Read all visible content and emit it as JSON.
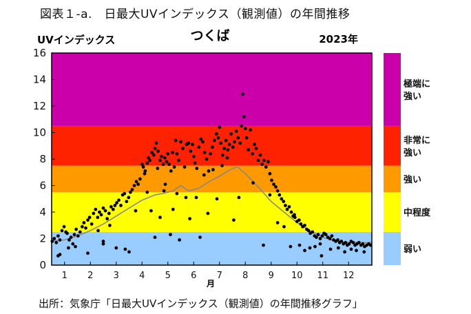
{
  "figure_title": "図表１-a.　日最大UVインデックス（観測値）の年間推移",
  "source": "出所：気象庁「日最大UVインデックス（観測値）の年間推移グラフ」",
  "chart_data": {
    "type": "scatter",
    "title": "つくば",
    "year_label": "2023年",
    "ylabel": "UVインデックス",
    "xlabel": "月",
    "xlim": [
      0.5,
      12.9
    ],
    "ylim": [
      0,
      16
    ],
    "yticks": [
      0,
      2,
      4,
      6,
      8,
      10,
      12,
      14,
      16
    ],
    "xticks": [
      1,
      2,
      3,
      4,
      5,
      6,
      7,
      8,
      9,
      10,
      11,
      12
    ],
    "grid": false,
    "bands": [
      {
        "from": 0,
        "to": 2.5,
        "label": "弱い",
        "color": "#99CCFF"
      },
      {
        "from": 2.5,
        "to": 5.5,
        "label": "中程度",
        "color": "#FFFF00"
      },
      {
        "from": 5.5,
        "to": 7.5,
        "label": "強い",
        "color": "#FF9900"
      },
      {
        "from": 7.5,
        "to": 10.5,
        "label": "非常に強い",
        "color": "#FF2200"
      },
      {
        "from": 10.5,
        "to": 16,
        "label": "極端に強い",
        "color": "#CC00AA"
      }
    ],
    "climatology_line": {
      "color": "#888888",
      "x": [
        0.5,
        1.0,
        1.5,
        2.0,
        2.5,
        3.0,
        3.5,
        4.0,
        4.5,
        4.8,
        5.2,
        5.5,
        5.8,
        6.2,
        6.6,
        7.0,
        7.4,
        7.7,
        8.0,
        8.5,
        9.0,
        9.5,
        10.0,
        10.5,
        11.0,
        11.5,
        12.0,
        12.5,
        12.9
      ],
      "y": [
        1.8,
        1.9,
        2.2,
        2.6,
        3.1,
        3.7,
        4.3,
        4.9,
        5.3,
        5.4,
        5.6,
        6.0,
        5.6,
        5.8,
        6.3,
        6.7,
        7.2,
        7.4,
        6.9,
        5.9,
        4.8,
        4.0,
        3.2,
        2.6,
        2.1,
        1.8,
        1.7,
        1.7,
        1.7
      ]
    },
    "series": [
      {
        "color": "#000000",
        "points": [
          [
            0.52,
            1.8
          ],
          [
            0.6,
            2.0
          ],
          [
            0.68,
            1.7
          ],
          [
            0.75,
            2.2
          ],
          [
            0.82,
            1.9
          ],
          [
            0.9,
            2.6
          ],
          [
            0.98,
            2.9
          ],
          [
            1.05,
            2.5
          ],
          [
            1.1,
            2.4
          ],
          [
            1.18,
            1.9
          ],
          [
            1.25,
            2.1
          ],
          [
            1.32,
            1.6
          ],
          [
            1.38,
            2.3
          ],
          [
            1.45,
            2.7
          ],
          [
            1.52,
            2.2
          ],
          [
            1.6,
            2.5
          ],
          [
            1.68,
            2.9
          ],
          [
            1.75,
            3.2
          ],
          [
            1.82,
            2.8
          ],
          [
            1.9,
            3.4
          ],
          [
            1.97,
            3.6
          ],
          [
            0.75,
            0.7
          ],
          [
            0.82,
            0.8
          ],
          [
            1.15,
            1.3
          ],
          [
            1.42,
            1.4
          ],
          [
            1.9,
            0.9
          ],
          [
            2.5,
            1.6
          ],
          [
            2.05,
            3.1
          ],
          [
            2.12,
            3.9
          ],
          [
            2.2,
            4.2
          ],
          [
            2.28,
            3.6
          ],
          [
            2.35,
            4.0
          ],
          [
            2.42,
            3.8
          ],
          [
            2.5,
            4.3
          ],
          [
            2.58,
            4.1
          ],
          [
            2.65,
            3.5
          ],
          [
            2.72,
            3.9
          ],
          [
            2.8,
            4.4
          ],
          [
            2.88,
            4.2
          ],
          [
            2.95,
            4.5
          ],
          [
            3.02,
            4.7
          ],
          [
            3.1,
            4.9
          ],
          [
            3.18,
            4.5
          ],
          [
            3.25,
            5.3
          ],
          [
            3.32,
            5.4
          ],
          [
            3.4,
            4.8
          ],
          [
            3.48,
            5.1
          ],
          [
            3.55,
            5.5
          ],
          [
            3.62,
            5.7
          ],
          [
            3.7,
            6.0
          ],
          [
            3.78,
            6.3
          ],
          [
            3.85,
            6.1
          ],
          [
            3.92,
            6.5
          ],
          [
            2.3,
            2.6
          ],
          [
            2.5,
            1.8
          ],
          [
            2.75,
            3.0
          ],
          [
            3.0,
            1.3
          ],
          [
            3.35,
            1.2
          ],
          [
            3.5,
            1.0
          ],
          [
            3.75,
            4.1
          ],
          [
            4.0,
            7.6
          ],
          [
            4.05,
            7.4
          ],
          [
            4.12,
            7.1
          ],
          [
            4.2,
            7.7
          ],
          [
            4.25,
            8.1
          ],
          [
            4.3,
            7.9
          ],
          [
            4.38,
            8.5
          ],
          [
            4.45,
            8.3
          ],
          [
            4.5,
            8.8
          ],
          [
            4.55,
            9.2
          ],
          [
            4.62,
            8.6
          ],
          [
            4.7,
            7.9
          ],
          [
            4.75,
            8.2
          ],
          [
            4.82,
            7.6
          ],
          [
            4.88,
            8.1
          ],
          [
            4.95,
            7.8
          ],
          [
            4.2,
            5.5
          ],
          [
            4.35,
            4.1
          ],
          [
            4.5,
            2.1
          ],
          [
            4.7,
            3.6
          ],
          [
            4.85,
            5.6
          ],
          [
            4.9,
            6.1
          ],
          [
            4.1,
            6.9
          ],
          [
            4.6,
            7.3
          ],
          [
            5.0,
            8.4
          ],
          [
            5.05,
            7.6
          ],
          [
            5.12,
            7.1
          ],
          [
            5.18,
            8.5
          ],
          [
            5.25,
            7.4
          ],
          [
            5.3,
            9.4
          ],
          [
            5.35,
            8.4
          ],
          [
            5.42,
            7.9
          ],
          [
            5.5,
            9.3
          ],
          [
            5.58,
            8.8
          ],
          [
            5.65,
            7.4
          ],
          [
            5.72,
            9.1
          ],
          [
            5.8,
            9.2
          ],
          [
            5.88,
            8.6
          ],
          [
            5.95,
            9.1
          ],
          [
            5.1,
            2.3
          ],
          [
            5.2,
            4.2
          ],
          [
            5.35,
            5.4
          ],
          [
            5.45,
            1.9
          ],
          [
            5.7,
            5.1
          ],
          [
            5.85,
            3.5
          ],
          [
            6.0,
            8.2
          ],
          [
            6.05,
            7.7
          ],
          [
            6.12,
            7.3
          ],
          [
            6.2,
            8.9
          ],
          [
            6.28,
            9.5
          ],
          [
            6.35,
            9.3
          ],
          [
            6.42,
            8.5
          ],
          [
            6.5,
            8.0
          ],
          [
            6.58,
            7.1
          ],
          [
            6.65,
            8.4
          ],
          [
            6.72,
            8.9
          ],
          [
            6.8,
            9.4
          ],
          [
            6.88,
            9.9
          ],
          [
            6.95,
            9.6
          ],
          [
            6.1,
            5.1
          ],
          [
            6.25,
            2.1
          ],
          [
            6.4,
            6.8
          ],
          [
            6.55,
            3.9
          ],
          [
            6.75,
            7.2
          ],
          [
            6.9,
            5.0
          ],
          [
            7.0,
            10.4
          ],
          [
            7.05,
            9.2
          ],
          [
            7.12,
            8.3
          ],
          [
            7.18,
            8.8
          ],
          [
            7.25,
            9.4
          ],
          [
            7.32,
            8.7
          ],
          [
            7.38,
            9.1
          ],
          [
            7.45,
            9.9
          ],
          [
            7.52,
            8.9
          ],
          [
            7.58,
            9.3
          ],
          [
            7.65,
            10.1
          ],
          [
            7.72,
            9.6
          ],
          [
            7.8,
            9.2
          ],
          [
            7.85,
            10.5
          ],
          [
            7.9,
            12.9
          ],
          [
            7.95,
            11.2
          ],
          [
            8.0,
            10.3
          ],
          [
            7.1,
            7.5
          ],
          [
            7.3,
            8.1
          ],
          [
            7.55,
            3.4
          ],
          [
            7.75,
            5.1
          ],
          [
            8.05,
            9.6
          ],
          [
            8.12,
            8.7
          ],
          [
            8.2,
            10.2
          ],
          [
            8.28,
            8.4
          ],
          [
            8.35,
            9.1
          ],
          [
            8.42,
            8.8
          ],
          [
            8.5,
            7.9
          ],
          [
            8.58,
            8.3
          ],
          [
            8.65,
            7.6
          ],
          [
            8.72,
            7.9
          ],
          [
            8.8,
            7.4
          ],
          [
            8.88,
            7.8
          ],
          [
            8.95,
            6.9
          ],
          [
            9.02,
            6.4
          ],
          [
            9.1,
            6.1
          ],
          [
            9.18,
            5.9
          ],
          [
            9.25,
            5.6
          ],
          [
            9.32,
            5.3
          ],
          [
            9.4,
            5.0
          ],
          [
            9.48,
            4.8
          ],
          [
            9.55,
            4.5
          ],
          [
            9.62,
            4.2
          ],
          [
            9.7,
            4.4
          ],
          [
            9.78,
            4.0
          ],
          [
            9.85,
            3.7
          ],
          [
            9.92,
            3.6
          ],
          [
            8.3,
            6.2
          ],
          [
            8.7,
            1.5
          ],
          [
            8.95,
            5.3
          ],
          [
            9.25,
            3.2
          ],
          [
            9.5,
            2.9
          ],
          [
            9.75,
            1.4
          ],
          [
            9.9,
            3.8
          ],
          [
            10.0,
            3.3
          ],
          [
            10.08,
            3.4
          ],
          [
            10.15,
            3.1
          ],
          [
            10.22,
            2.9
          ],
          [
            10.3,
            3.0
          ],
          [
            10.38,
            2.7
          ],
          [
            10.45,
            2.6
          ],
          [
            10.52,
            2.4
          ],
          [
            10.6,
            2.5
          ],
          [
            10.68,
            2.2
          ],
          [
            10.75,
            2.1
          ],
          [
            10.82,
            2.3
          ],
          [
            10.9,
            2.0
          ],
          [
            10.98,
            2.2
          ],
          [
            10.1,
            1.5
          ],
          [
            10.3,
            1.1
          ],
          [
            10.5,
            1.3
          ],
          [
            10.7,
            1.4
          ],
          [
            10.9,
            1.6
          ],
          [
            10.95,
            0.7
          ],
          [
            11.05,
            2.4
          ],
          [
            11.12,
            2.3
          ],
          [
            11.2,
            2.1
          ],
          [
            11.28,
            2.0
          ],
          [
            11.35,
            2.2
          ],
          [
            11.42,
            1.9
          ],
          [
            11.5,
            1.8
          ],
          [
            11.58,
            1.9
          ],
          [
            11.65,
            1.7
          ],
          [
            11.72,
            1.8
          ],
          [
            11.8,
            1.6
          ],
          [
            11.88,
            1.7
          ],
          [
            11.95,
            1.5
          ],
          [
            11.3,
            1.2
          ],
          [
            11.6,
            1.3
          ],
          [
            11.85,
            1.0
          ],
          [
            12.02,
            1.6
          ],
          [
            12.1,
            1.8
          ],
          [
            12.18,
            1.7
          ],
          [
            12.25,
            1.5
          ],
          [
            12.32,
            1.6
          ],
          [
            12.4,
            1.7
          ],
          [
            12.48,
            1.5
          ],
          [
            12.55,
            1.6
          ],
          [
            12.62,
            1.4
          ],
          [
            12.7,
            1.5
          ],
          [
            12.78,
            1.6
          ],
          [
            12.85,
            1.5
          ],
          [
            12.1,
            1.2
          ],
          [
            12.3,
            1.1
          ],
          [
            12.6,
            1.0
          ]
        ]
      }
    ]
  }
}
